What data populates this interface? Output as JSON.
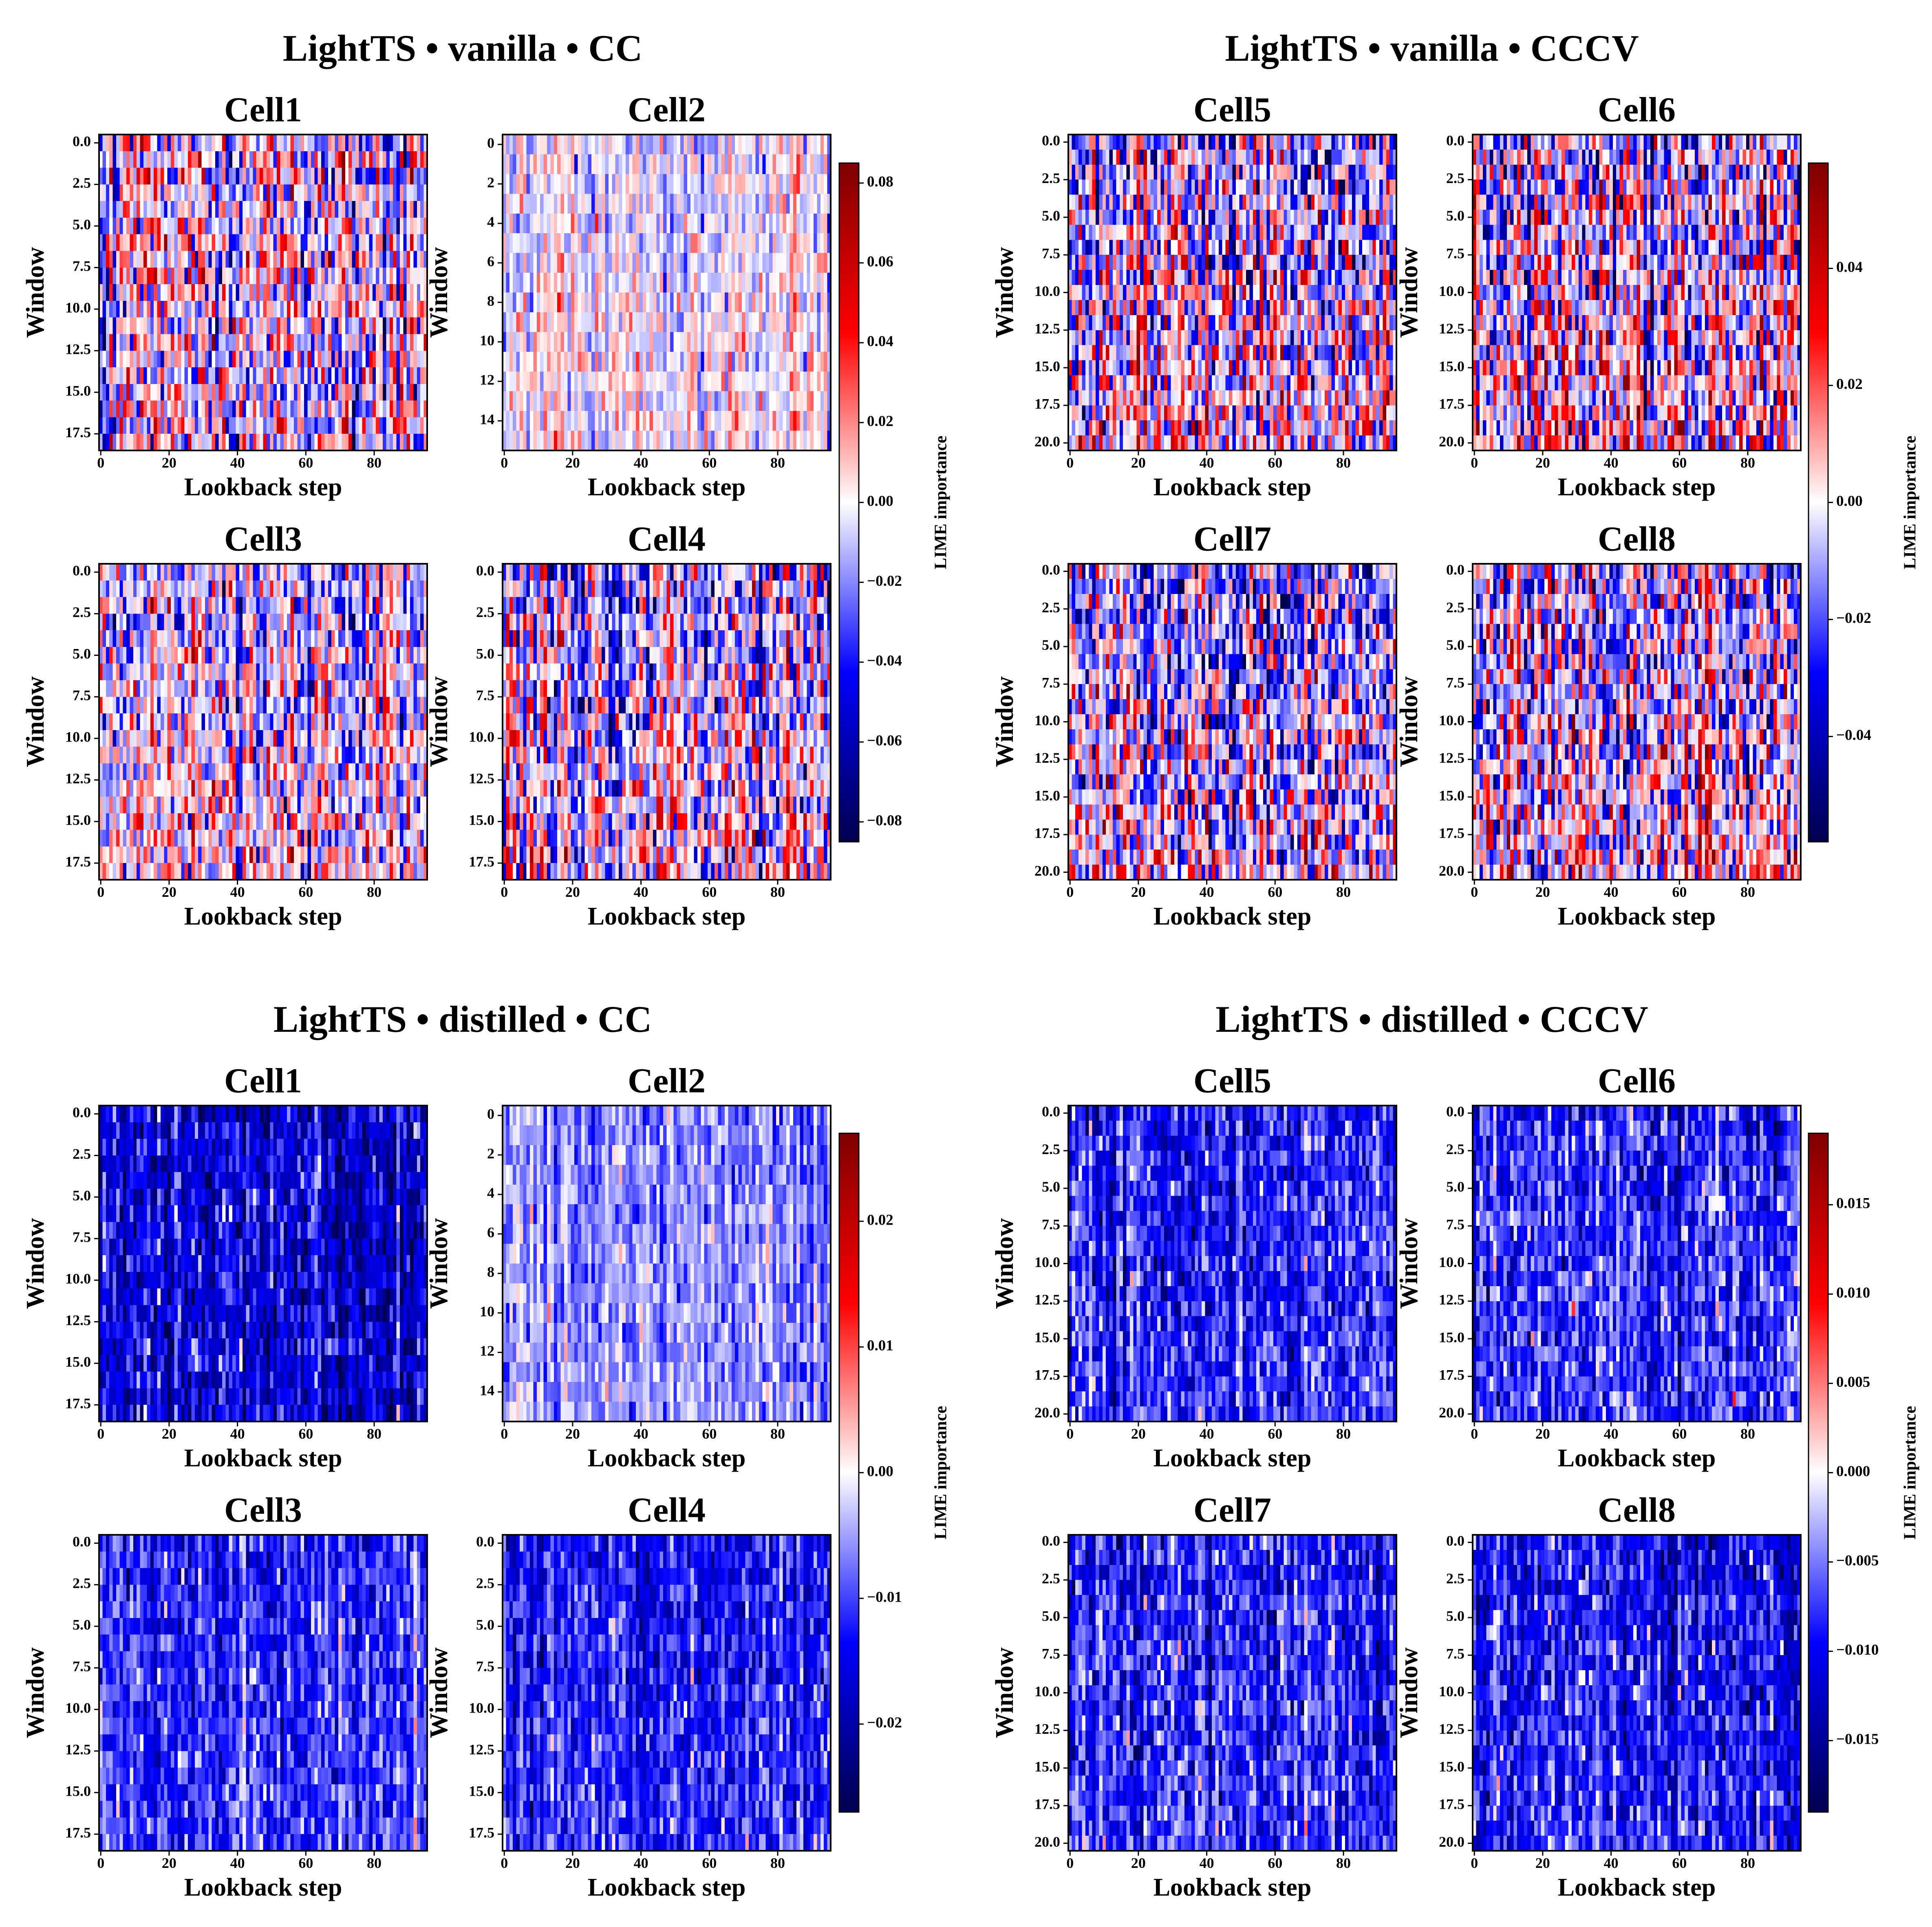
{
  "chart_data": [
    {
      "type": "heatmap",
      "title": "LightTS • vanilla • CC",
      "colormap": "seismic",
      "colorbar": {
        "label": "LIME importance",
        "range": [
          -0.085,
          0.085
        ],
        "ticks": [
          -0.08,
          -0.06,
          -0.04,
          -0.02,
          0.0,
          0.02,
          0.04,
          0.06,
          0.08
        ],
        "tick_labels": [
          "−0.08",
          "−0.06",
          "−0.04",
          "−0.02",
          "0.00",
          "0.02",
          "0.04",
          "0.06",
          "0.08"
        ]
      },
      "subplots": [
        {
          "title": "Cell1",
          "xlabel": "Lookback step",
          "ylabel": "Window",
          "rows": 19,
          "cols": 96,
          "yticks": [
            0,
            2.5,
            5,
            7.5,
            10,
            12.5,
            15,
            17.5
          ],
          "ytick_labels": [
            "0.0",
            "2.5",
            "5.0",
            "7.5",
            "10.0",
            "12.5",
            "15.0",
            "17.5"
          ],
          "xticks": [
            0,
            20,
            40,
            60,
            80
          ],
          "xtick_labels": [
            "0",
            "20",
            "40",
            "60",
            "80"
          ],
          "mean": -0.004,
          "spread": 0.032,
          "trend": 0.002
        },
        {
          "title": "Cell2",
          "xlabel": "Lookback step",
          "ylabel": "Window",
          "rows": 16,
          "cols": 96,
          "yticks": [
            0,
            2,
            4,
            6,
            8,
            10,
            12,
            14
          ],
          "ytick_labels": [
            "0",
            "2",
            "4",
            "6",
            "8",
            "10",
            "12",
            "14"
          ],
          "xticks": [
            0,
            20,
            40,
            60,
            80
          ],
          "xtick_labels": [
            "0",
            "20",
            "40",
            "60",
            "80"
          ],
          "mean": -0.002,
          "spread": 0.014,
          "trend": 0.006
        },
        {
          "title": "Cell3",
          "xlabel": "Lookback step",
          "ylabel": "Window",
          "rows": 19,
          "cols": 96,
          "yticks": [
            0,
            2.5,
            5,
            7.5,
            10,
            12.5,
            15,
            17.5
          ],
          "ytick_labels": [
            "0.0",
            "2.5",
            "5.0",
            "7.5",
            "10.0",
            "12.5",
            "15.0",
            "17.5"
          ],
          "xticks": [
            0,
            20,
            40,
            60,
            80
          ],
          "xtick_labels": [
            "0",
            "20",
            "40",
            "60",
            "80"
          ],
          "mean": -0.006,
          "spread": 0.026,
          "trend": 0.014
        },
        {
          "title": "Cell4",
          "xlabel": "Lookback step",
          "ylabel": "Window",
          "rows": 19,
          "cols": 96,
          "yticks": [
            0,
            2.5,
            5,
            7.5,
            10,
            12.5,
            15,
            17.5
          ],
          "ytick_labels": [
            "0.0",
            "2.5",
            "5.0",
            "7.5",
            "10.0",
            "12.5",
            "15.0",
            "17.5"
          ],
          "xticks": [
            0,
            20,
            40,
            60,
            80
          ],
          "xtick_labels": [
            "0",
            "20",
            "40",
            "60",
            "80"
          ],
          "mean": -0.01,
          "spread": 0.032,
          "trend": 0.018
        }
      ]
    },
    {
      "type": "heatmap",
      "title": "LightTS • vanilla • CCCV",
      "colormap": "seismic",
      "colorbar": {
        "label": "LIME importance",
        "range": [
          -0.058,
          0.058
        ],
        "ticks": [
          -0.04,
          -0.02,
          0.0,
          0.02,
          0.04
        ],
        "tick_labels": [
          "−0.04",
          "−0.02",
          "0.00",
          "0.02",
          "0.04"
        ]
      },
      "subplots": [
        {
          "title": "Cell5",
          "xlabel": "Lookback step",
          "ylabel": "Window",
          "rows": 21,
          "cols": 96,
          "yticks": [
            0,
            2.5,
            5,
            7.5,
            10,
            12.5,
            15,
            17.5,
            20
          ],
          "ytick_labels": [
            "0.0",
            "2.5",
            "5.0",
            "7.5",
            "10.0",
            "12.5",
            "15.0",
            "17.5",
            "20.0"
          ],
          "xticks": [
            0,
            20,
            40,
            60,
            80
          ],
          "xtick_labels": [
            "0",
            "20",
            "40",
            "60",
            "80"
          ],
          "mean": -0.004,
          "spread": 0.024,
          "trend": 0.014
        },
        {
          "title": "Cell6",
          "xlabel": "Lookback step",
          "ylabel": "Window",
          "rows": 21,
          "cols": 96,
          "yticks": [
            0,
            2.5,
            5,
            7.5,
            10,
            12.5,
            15,
            17.5,
            20
          ],
          "ytick_labels": [
            "0.0",
            "2.5",
            "5.0",
            "7.5",
            "10.0",
            "12.5",
            "15.0",
            "17.5",
            "20.0"
          ],
          "xticks": [
            0,
            20,
            40,
            60,
            80
          ],
          "xtick_labels": [
            "0",
            "20",
            "40",
            "60",
            "80"
          ],
          "mean": -0.004,
          "spread": 0.024,
          "trend": 0.014
        },
        {
          "title": "Cell7",
          "xlabel": "Lookback step",
          "ylabel": "Window",
          "rows": 21,
          "cols": 96,
          "yticks": [
            0,
            2.5,
            5,
            7.5,
            10,
            12.5,
            15,
            17.5,
            20
          ],
          "ytick_labels": [
            "0.0",
            "2.5",
            "5.0",
            "7.5",
            "10.0",
            "12.5",
            "15.0",
            "17.5",
            "20.0"
          ],
          "xticks": [
            0,
            20,
            40,
            60,
            80
          ],
          "xtick_labels": [
            "0",
            "20",
            "40",
            "60",
            "80"
          ],
          "mean": -0.005,
          "spread": 0.024,
          "trend": 0.014
        },
        {
          "title": "Cell8",
          "xlabel": "Lookback step",
          "ylabel": "Window",
          "rows": 21,
          "cols": 96,
          "yticks": [
            0,
            2.5,
            5,
            7.5,
            10,
            12.5,
            15,
            17.5,
            20
          ],
          "ytick_labels": [
            "0.0",
            "2.5",
            "5.0",
            "7.5",
            "10.0",
            "12.5",
            "15.0",
            "17.5",
            "20.0"
          ],
          "xticks": [
            0,
            20,
            40,
            60,
            80
          ],
          "xtick_labels": [
            "0",
            "20",
            "40",
            "60",
            "80"
          ],
          "mean": -0.005,
          "spread": 0.024,
          "trend": 0.014
        }
      ]
    },
    {
      "type": "heatmap",
      "title": "LightTS • distilled • CC",
      "colormap": "seismic",
      "colorbar": {
        "label": "LIME importance",
        "range": [
          -0.027,
          0.027
        ],
        "ticks": [
          -0.02,
          -0.01,
          0.0,
          0.01,
          0.02
        ],
        "tick_labels": [
          "−0.02",
          "−0.01",
          "0.00",
          "0.01",
          "0.02"
        ]
      },
      "subplots": [
        {
          "title": "Cell1",
          "xlabel": "Lookback step",
          "ylabel": "Window",
          "rows": 19,
          "cols": 96,
          "yticks": [
            0,
            2.5,
            5,
            7.5,
            10,
            12.5,
            15,
            17.5
          ],
          "ytick_labels": [
            "0.0",
            "2.5",
            "5.0",
            "7.5",
            "10.0",
            "12.5",
            "15.0",
            "17.5"
          ],
          "xticks": [
            0,
            20,
            40,
            60,
            80
          ],
          "xtick_labels": [
            "0",
            "20",
            "40",
            "60",
            "80"
          ],
          "mean": -0.017,
          "spread": 0.006,
          "trend": 0.0
        },
        {
          "title": "Cell2",
          "xlabel": "Lookback step",
          "ylabel": "Window",
          "rows": 16,
          "cols": 96,
          "yticks": [
            0,
            2,
            4,
            6,
            8,
            10,
            12,
            14
          ],
          "ytick_labels": [
            "0",
            "2",
            "4",
            "6",
            "8",
            "10",
            "12",
            "14"
          ],
          "xticks": [
            0,
            20,
            40,
            60,
            80
          ],
          "xtick_labels": [
            "0",
            "20",
            "40",
            "60",
            "80"
          ],
          "mean": -0.006,
          "spread": 0.004,
          "trend": 0.001
        },
        {
          "title": "Cell3",
          "xlabel": "Lookback step",
          "ylabel": "Window",
          "rows": 19,
          "cols": 96,
          "yticks": [
            0,
            2.5,
            5,
            7.5,
            10,
            12.5,
            15,
            17.5
          ],
          "ytick_labels": [
            "0.0",
            "2.5",
            "5.0",
            "7.5",
            "10.0",
            "12.5",
            "15.0",
            "17.5"
          ],
          "xticks": [
            0,
            20,
            40,
            60,
            80
          ],
          "xtick_labels": [
            "0",
            "20",
            "40",
            "60",
            "80"
          ],
          "mean": -0.011,
          "spread": 0.005,
          "trend": 0.002
        },
        {
          "title": "Cell4",
          "xlabel": "Lookback step",
          "ylabel": "Window",
          "rows": 19,
          "cols": 96,
          "yticks": [
            0,
            2.5,
            5,
            7.5,
            10,
            12.5,
            15,
            17.5
          ],
          "ytick_labels": [
            "0.0",
            "2.5",
            "5.0",
            "7.5",
            "10.0",
            "12.5",
            "15.0",
            "17.5"
          ],
          "xticks": [
            0,
            20,
            40,
            60,
            80
          ],
          "xtick_labels": [
            "0",
            "20",
            "40",
            "60",
            "80"
          ],
          "mean": -0.012,
          "spread": 0.005,
          "trend": 0.002
        }
      ]
    },
    {
      "type": "heatmap",
      "title": "LightTS • distilled • CCCV",
      "colormap": "seismic",
      "colorbar": {
        "label": "LIME importance",
        "range": [
          -0.019,
          0.019
        ],
        "ticks": [
          -0.015,
          -0.01,
          -0.005,
          0.0,
          0.005,
          0.01,
          0.015
        ],
        "tick_labels": [
          "−0.015",
          "−0.010",
          "−0.005",
          "0.000",
          "0.005",
          "0.010",
          "0.015"
        ]
      },
      "subplots": [
        {
          "title": "Cell5",
          "xlabel": "Lookback step",
          "ylabel": "Window",
          "rows": 21,
          "cols": 96,
          "yticks": [
            0,
            2.5,
            5,
            7.5,
            10,
            12.5,
            15,
            17.5,
            20
          ],
          "ytick_labels": [
            "0.0",
            "2.5",
            "5.0",
            "7.5",
            "10.0",
            "12.5",
            "15.0",
            "17.5",
            "20.0"
          ],
          "xticks": [
            0,
            20,
            40,
            60,
            80
          ],
          "xtick_labels": [
            "0",
            "20",
            "40",
            "60",
            "80"
          ],
          "mean": -0.008,
          "spread": 0.004,
          "trend": 0.001
        },
        {
          "title": "Cell6",
          "xlabel": "Lookback step",
          "ylabel": "Window",
          "rows": 21,
          "cols": 96,
          "yticks": [
            0,
            2.5,
            5,
            7.5,
            10,
            12.5,
            15,
            17.5,
            20
          ],
          "ytick_labels": [
            "0.0",
            "2.5",
            "5.0",
            "7.5",
            "10.0",
            "12.5",
            "15.0",
            "17.5",
            "20.0"
          ],
          "xticks": [
            0,
            20,
            40,
            60,
            80
          ],
          "xtick_labels": [
            "0",
            "20",
            "40",
            "60",
            "80"
          ],
          "mean": -0.008,
          "spread": 0.004,
          "trend": 0.001
        },
        {
          "title": "Cell7",
          "xlabel": "Lookback step",
          "ylabel": "Window",
          "rows": 21,
          "cols": 96,
          "yticks": [
            0,
            2.5,
            5,
            7.5,
            10,
            12.5,
            15,
            17.5,
            20
          ],
          "ytick_labels": [
            "0.0",
            "2.5",
            "5.0",
            "7.5",
            "10.0",
            "12.5",
            "15.0",
            "17.5",
            "20.0"
          ],
          "xticks": [
            0,
            20,
            40,
            60,
            80
          ],
          "xtick_labels": [
            "0",
            "20",
            "40",
            "60",
            "80"
          ],
          "mean": -0.008,
          "spread": 0.004,
          "trend": 0.001
        },
        {
          "title": "Cell8",
          "xlabel": "Lookback step",
          "ylabel": "Window",
          "rows": 21,
          "cols": 96,
          "yticks": [
            0,
            2.5,
            5,
            7.5,
            10,
            12.5,
            15,
            17.5,
            20
          ],
          "ytick_labels": [
            "0.0",
            "2.5",
            "5.0",
            "7.5",
            "10.0",
            "12.5",
            "15.0",
            "17.5",
            "20.0"
          ],
          "xticks": [
            0,
            20,
            40,
            60,
            80
          ],
          "xtick_labels": [
            "0",
            "20",
            "40",
            "60",
            "80"
          ],
          "mean": -0.009,
          "spread": 0.004,
          "trend": 0.001
        }
      ]
    }
  ]
}
